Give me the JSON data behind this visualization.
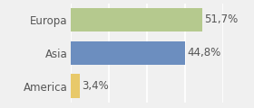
{
  "categories": [
    "America",
    "Asia",
    "Europa"
  ],
  "values": [
    3.4,
    44.8,
    51.7
  ],
  "bar_colors": [
    "#e8c96a",
    "#6c8ebf",
    "#b5c98e"
  ],
  "labels": [
    "3,4%",
    "44,8%",
    "51,7%"
  ],
  "xlim": [
    0,
    60
  ],
  "background_color": "#f0f0f0",
  "label_fontsize": 8.5,
  "tick_fontsize": 8.5,
  "bar_height": 0.72,
  "grid_color": "#ffffff",
  "grid_linewidth": 1.2,
  "label_color": "#555555",
  "tick_color": "#555555"
}
